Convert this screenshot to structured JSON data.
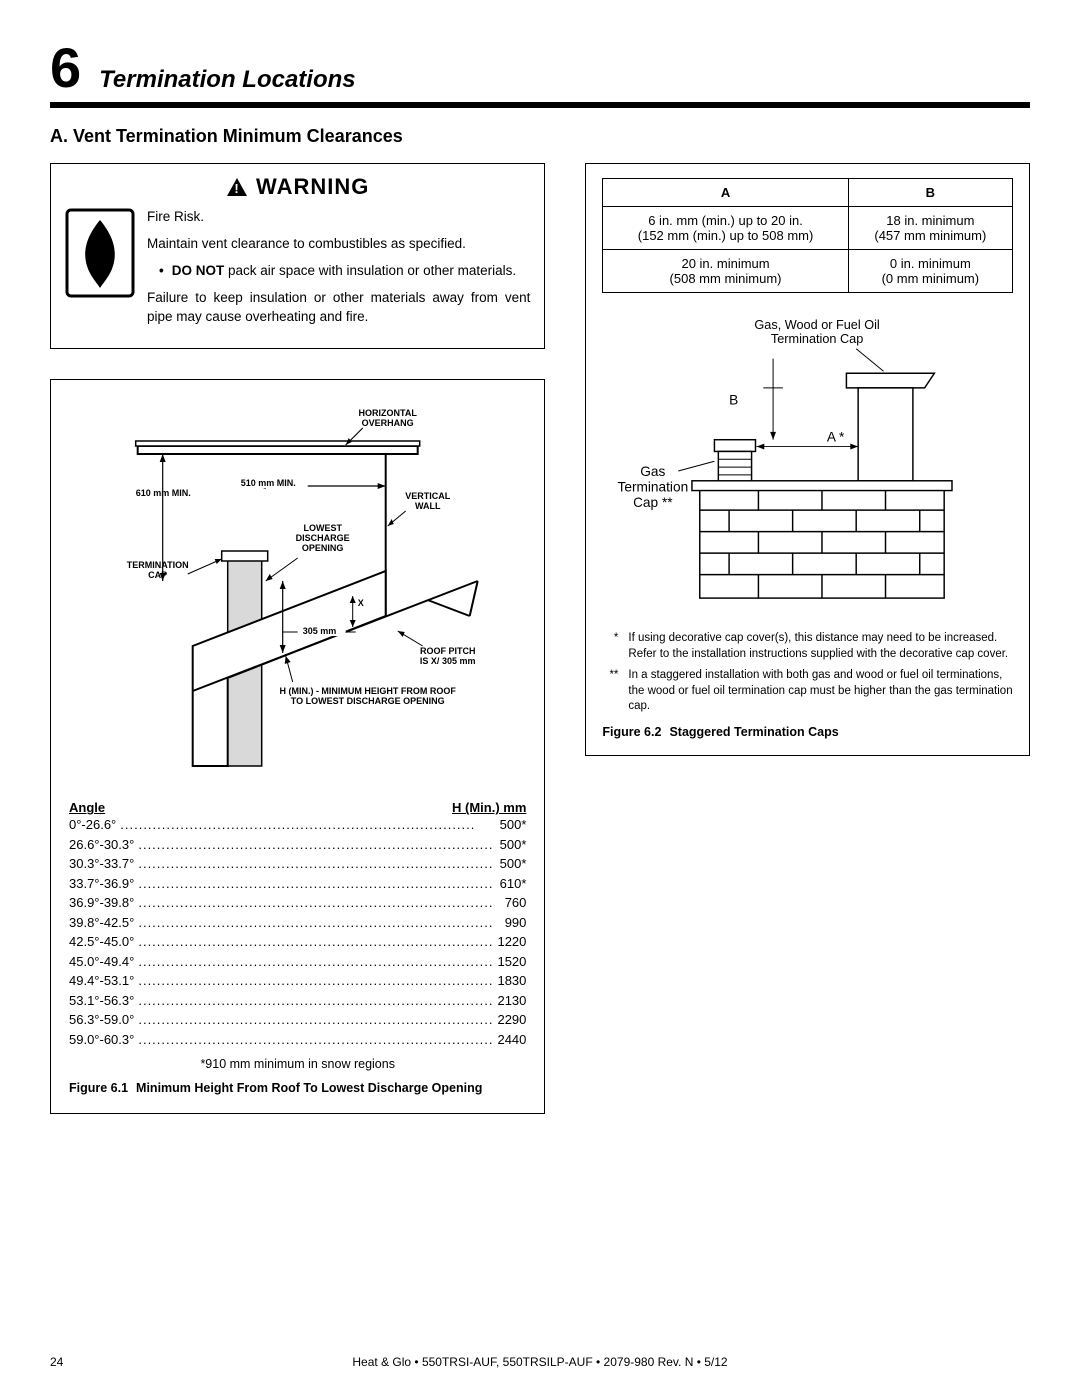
{
  "section": {
    "number": "6",
    "title": "Termination Locations"
  },
  "subsection": {
    "label": "A.  Vent Termination Minimum Clearances"
  },
  "warning": {
    "heading": "WARNING",
    "risk": "Fire Risk.",
    "body1": "Maintain vent clearance to combustibles as specified.",
    "bullet1_pre": "DO NOT",
    "bullet1_rest": " pack air space with insulation or other materials.",
    "body2": "Failure to keep insulation or other materials away from vent pipe may cause overheating and fire."
  },
  "fig61": {
    "diagram": {
      "horiz_overhang": "HORIZONTAL\nOVERHANG",
      "mm610": "610 mm MIN.",
      "mm510": "510 mm MIN.",
      "vertical_wall": "VERTICAL\nWALL",
      "lowest": "LOWEST\nDISCHARGE\nOPENING",
      "term_cap": "TERMINATION\nCAP",
      "x": "X",
      "mm305": "305 mm",
      "roof_pitch": "ROOF PITCH\nIS X/ 305 mm",
      "h_min": "H (MIN.) - MINIMUM HEIGHT FROM ROOF\nTO LOWEST DISCHARGE OPENING"
    },
    "table": {
      "col_a": "Angle",
      "col_h": "H (Min.) mm",
      "rows": [
        {
          "a": "0°-26.6°",
          "v": "500*"
        },
        {
          "a": "26.6°-30.3°",
          "v": "500*"
        },
        {
          "a": "30.3°-33.7°",
          "v": "500*"
        },
        {
          "a": "33.7°-36.9°",
          "v": "610*"
        },
        {
          "a": "36.9°-39.8°",
          "v": "760"
        },
        {
          "a": "39.8°-42.5°",
          "v": "990"
        },
        {
          "a": "42.5°-45.0°",
          "v": "1220"
        },
        {
          "a": "45.0°-49.4°",
          "v": "1520"
        },
        {
          "a": "49.4°-53.1°",
          "v": "1830"
        },
        {
          "a": "53.1°-56.3°",
          "v": "2130"
        },
        {
          "a": "56.3°-59.0°",
          "v": "2290"
        },
        {
          "a": "59.0°-60.3°",
          "v": "2440"
        }
      ],
      "snow": "*910 mm minimum in snow regions"
    },
    "caption_num": "Figure 6.1",
    "caption_text": "Minimum Height From Roof To Lowest Discharge Opening"
  },
  "fig62": {
    "table": {
      "hA": "A",
      "hB": "B",
      "r1A_1": "6 in. mm (min.) up to 20 in.",
      "r1A_2": "(152 mm (min.) up to 508 mm)",
      "r1B_1": "18 in. minimum",
      "r1B_2": "(457 mm minimum)",
      "r2A_1": "20 in. minimum",
      "r2A_2": "(508 mm minimum)",
      "r2B_1": "0 in. minimum",
      "r2B_2": "(0 mm minimum)"
    },
    "diagram": {
      "gwfo": "Gas, Wood or Fuel Oil\nTermination Cap",
      "b": "B",
      "a": "A *",
      "gas": "Gas",
      "term": "Termination",
      "cap": "Cap **"
    },
    "note1_sym": "*",
    "note1": "If using decorative cap cover(s), this distance may need to be increased. Refer to the installation instructions supplied with the decorative cap cover.",
    "note2_sym": "**",
    "note2": "In a staggered installation with both gas and wood or fuel oil terminations, the wood or fuel oil termination cap must be higher than the gas termination cap.",
    "caption_num": "Figure 6.2",
    "caption_text": "Staggered Termination Caps"
  },
  "footer": {
    "page": "24",
    "text": "Heat & Glo  •  550TRSI-AUF, 550TRSILP-AUF  •  2079-980 Rev. N  •  5/12"
  },
  "colors": {
    "rule": "#000000"
  }
}
